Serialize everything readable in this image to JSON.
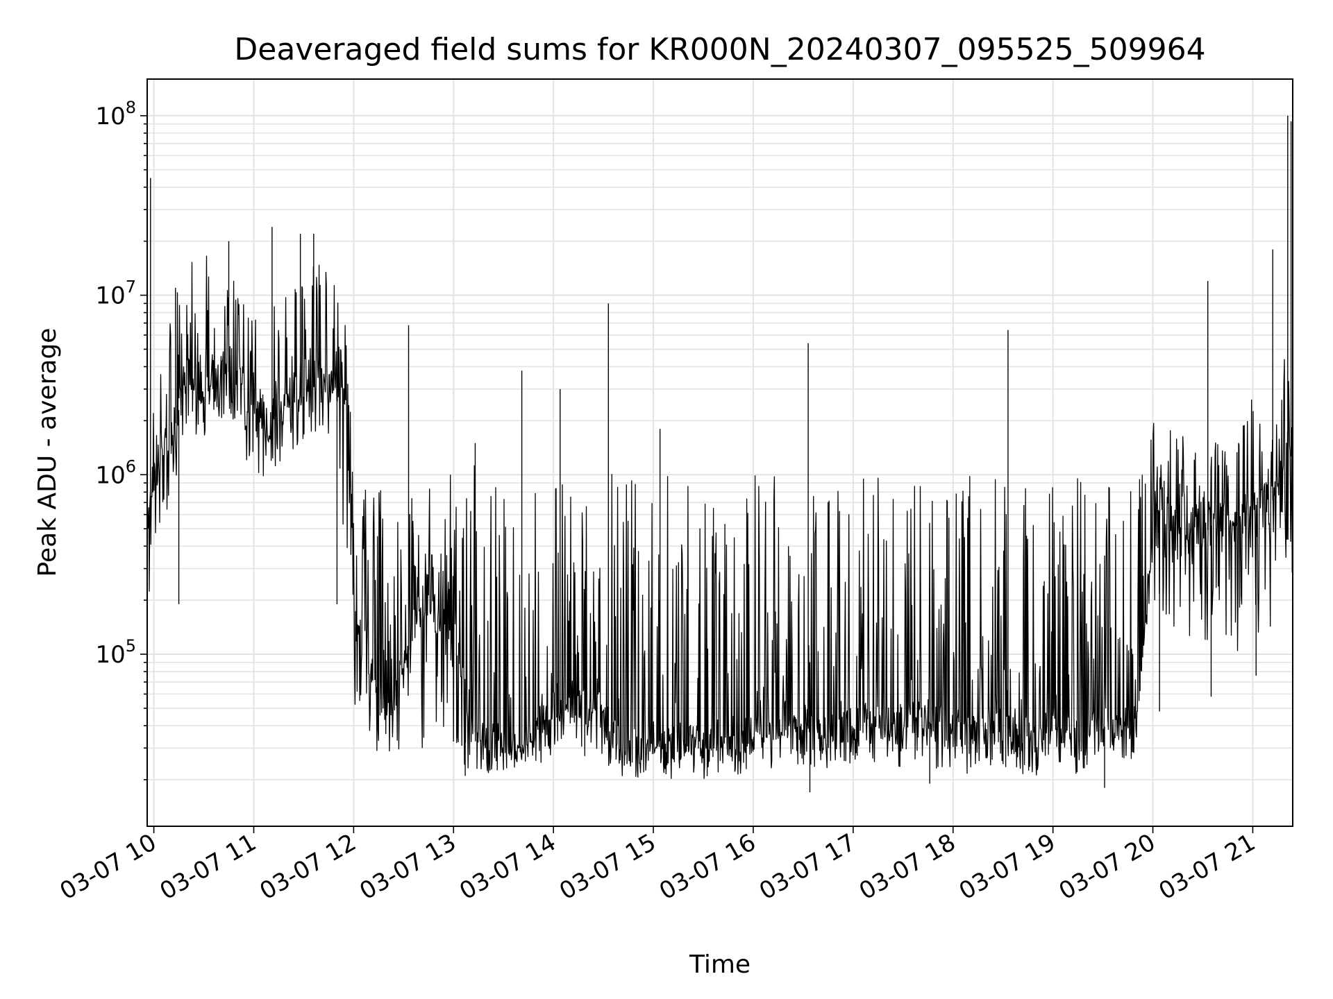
{
  "chart_data": {
    "type": "line",
    "title": "Deaveraged field sums for KR000N_20240307_095525_509964",
    "xlabel": "Time",
    "ylabel": "Peak ADU - average",
    "yscale": "log",
    "ylim": [
      11000,
      160000000
    ],
    "xlim": [
      "2024-03-07 09:56",
      "2024-03-07 21:24"
    ],
    "grid": true,
    "line_color": "#000000",
    "x_ticks": [
      "03-07 10",
      "03-07 11",
      "03-07 12",
      "03-07 13",
      "03-07 14",
      "03-07 15",
      "03-07 16",
      "03-07 17",
      "03-07 18",
      "03-07 19",
      "03-07 20",
      "03-07 21"
    ],
    "y_ticks": [
      {
        "base": "10",
        "exp": "5",
        "value": 100000
      },
      {
        "base": "10",
        "exp": "6",
        "value": 1000000
      },
      {
        "base": "10",
        "exp": "7",
        "value": 10000000
      },
      {
        "base": "10",
        "exp": "8",
        "value": 100000000
      }
    ],
    "series": [
      {
        "x": [
          "2024-03-07 09:56",
          "2024-03-07 10:00",
          "2024-03-07 10:10",
          "2024-03-07 10:20",
          "2024-03-07 10:30",
          "2024-03-07 10:40",
          "2024-03-07 10:50",
          "2024-03-07 11:00",
          "2024-03-07 11:10",
          "2024-03-07 11:20",
          "2024-03-07 11:30",
          "2024-03-07 11:40",
          "2024-03-07 11:50",
          "2024-03-07 11:55",
          "2024-03-07 12:00",
          "2024-03-07 12:10",
          "2024-03-07 12:20",
          "2024-03-07 12:30",
          "2024-03-07 12:40",
          "2024-03-07 12:50",
          "2024-03-07 13:00",
          "2024-03-07 13:10",
          "2024-03-07 13:20",
          "2024-03-07 13:30",
          "2024-03-07 13:40",
          "2024-03-07 13:50",
          "2024-03-07 14:00",
          "2024-03-07 14:10",
          "2024-03-07 14:20",
          "2024-03-07 14:30",
          "2024-03-07 14:40",
          "2024-03-07 14:50",
          "2024-03-07 15:00",
          "2024-03-07 15:10",
          "2024-03-07 15:20",
          "2024-03-07 15:30",
          "2024-03-07 15:40",
          "2024-03-07 15:50",
          "2024-03-07 16:00",
          "2024-03-07 16:10",
          "2024-03-07 16:20",
          "2024-03-07 16:30",
          "2024-03-07 16:40",
          "2024-03-07 16:50",
          "2024-03-07 17:00",
          "2024-03-07 17:10",
          "2024-03-07 17:20",
          "2024-03-07 17:30",
          "2024-03-07 17:40",
          "2024-03-07 17:50",
          "2024-03-07 18:00",
          "2024-03-07 18:10",
          "2024-03-07 18:20",
          "2024-03-07 18:30",
          "2024-03-07 18:40",
          "2024-03-07 18:50",
          "2024-03-07 19:00",
          "2024-03-07 19:10",
          "2024-03-07 19:20",
          "2024-03-07 19:30",
          "2024-03-07 19:40",
          "2024-03-07 19:50",
          "2024-03-07 20:00",
          "2024-03-07 20:10",
          "2024-03-07 20:20",
          "2024-03-07 20:30",
          "2024-03-07 20:40",
          "2024-03-07 20:50",
          "2024-03-07 21:00",
          "2024-03-07 21:10",
          "2024-03-07 21:20",
          "2024-03-07 21:24"
        ],
        "y": [
          600000,
          1000000,
          1500000,
          3500000,
          3000000,
          4000000,
          3500000,
          2500000,
          2000000,
          2500000,
          3000000,
          3500000,
          3000000,
          2500000,
          200000,
          80000,
          50000,
          80000,
          200000,
          150000,
          150000,
          40000,
          30000,
          35000,
          30000,
          40000,
          45000,
          50000,
          50000,
          45000,
          30000,
          30000,
          35000,
          30000,
          35000,
          30000,
          35000,
          30000,
          40000,
          35000,
          45000,
          40000,
          35000,
          40000,
          40000,
          45000,
          40000,
          40000,
          45000,
          40000,
          40000,
          35000,
          40000,
          40000,
          35000,
          35000,
          40000,
          35000,
          35000,
          40000,
          35000,
          30000,
          600000,
          500000,
          500000,
          450000,
          600000,
          500000,
          700000,
          600000,
          1500000,
          1200000
        ],
        "y_low": [
          170000,
          400000,
          700000,
          1500000,
          1500000,
          2000000,
          1800000,
          800000,
          1000000,
          1200000,
          1500000,
          1800000,
          1500000,
          300000,
          50000,
          30000,
          25000,
          28000,
          30000,
          30000,
          30000,
          20000,
          20000,
          22000,
          22000,
          24000,
          25000,
          27000,
          26000,
          25000,
          20000,
          20000,
          22000,
          20000,
          22000,
          20000,
          22000,
          20000,
          24000,
          22000,
          25000,
          24000,
          22000,
          24000,
          24000,
          25000,
          23000,
          23000,
          25000,
          23000,
          23000,
          21000,
          23000,
          23000,
          21000,
          21000,
          24000,
          21000,
          21000,
          30000,
          50000,
          60000,
          200000,
          150000,
          120000,
          100000,
          150000,
          100000,
          120000,
          80000,
          300000,
          150000
        ],
        "y_high": [
          2000000,
          2500000,
          8000000,
          15000000,
          18000000,
          17000000,
          12000000,
          8000000,
          12000000,
          10000000,
          20000000,
          15000000,
          12000000,
          9000000,
          1000000,
          800000,
          1000000,
          1000000,
          1000000,
          1100000,
          1100000,
          1300000,
          1000000,
          1000000,
          1000000,
          1000000,
          1000000,
          1000000,
          1100000,
          1050000,
          1000000,
          1000000,
          1000000,
          1000000,
          1000000,
          1000000,
          1000000,
          1000000,
          1050000,
          1000000,
          1000000,
          1000000,
          1000000,
          1000000,
          1000000,
          1000000,
          1000000,
          1000000,
          1000000,
          1000000,
          1000000,
          1000000,
          1000000,
          1000000,
          1000000,
          1000000,
          1000000,
          1000000,
          1000000,
          1000000,
          1000000,
          1100000,
          2000000,
          1800000,
          1700000,
          1500000,
          1800000,
          1400000,
          3000000,
          2500000,
          5000000,
          4000000
        ]
      }
    ],
    "spikes": [
      {
        "x": "2024-03-07 09:58",
        "y": 45000000
      },
      {
        "x": "2024-03-07 10:13",
        "y": 11000000
      },
      {
        "x": "2024-03-07 10:45",
        "y": 20000000
      },
      {
        "x": "2024-03-07 11:11",
        "y": 24000000
      },
      {
        "x": "2024-03-07 11:28",
        "y": 22000000
      },
      {
        "x": "2024-03-07 11:36",
        "y": 22000000
      },
      {
        "x": "2024-03-07 12:33",
        "y": 6800000
      },
      {
        "x": "2024-03-07 13:13",
        "y": 1500000
      },
      {
        "x": "2024-03-07 13:41",
        "y": 3800000
      },
      {
        "x": "2024-03-07 14:04",
        "y": 3000000
      },
      {
        "x": "2024-03-07 14:33",
        "y": 9000000
      },
      {
        "x": "2024-03-07 15:04",
        "y": 1800000
      },
      {
        "x": "2024-03-07 16:33",
        "y": 5400000
      },
      {
        "x": "2024-03-07 18:33",
        "y": 6400000
      },
      {
        "x": "2024-03-07 20:33",
        "y": 12000000
      },
      {
        "x": "2024-03-07 21:12",
        "y": 18000000
      },
      {
        "x": "2024-03-07 21:21",
        "y": 100000000
      },
      {
        "x": "2024-03-07 21:23",
        "y": 93000000
      }
    ],
    "dips": [
      {
        "x": "2024-03-07 10:15",
        "y": 190000
      },
      {
        "x": "2024-03-07 11:50",
        "y": 190000
      },
      {
        "x": "2024-03-07 13:07",
        "y": 21000
      },
      {
        "x": "2024-03-07 16:34",
        "y": 17000
      },
      {
        "x": "2024-03-07 17:46",
        "y": 19000
      },
      {
        "x": "2024-03-07 19:31",
        "y": 18000
      },
      {
        "x": "2024-03-07 20:04",
        "y": 48000
      },
      {
        "x": "2024-03-07 20:35",
        "y": 58000
      },
      {
        "x": "2024-03-07 21:02",
        "y": 76000
      }
    ]
  }
}
